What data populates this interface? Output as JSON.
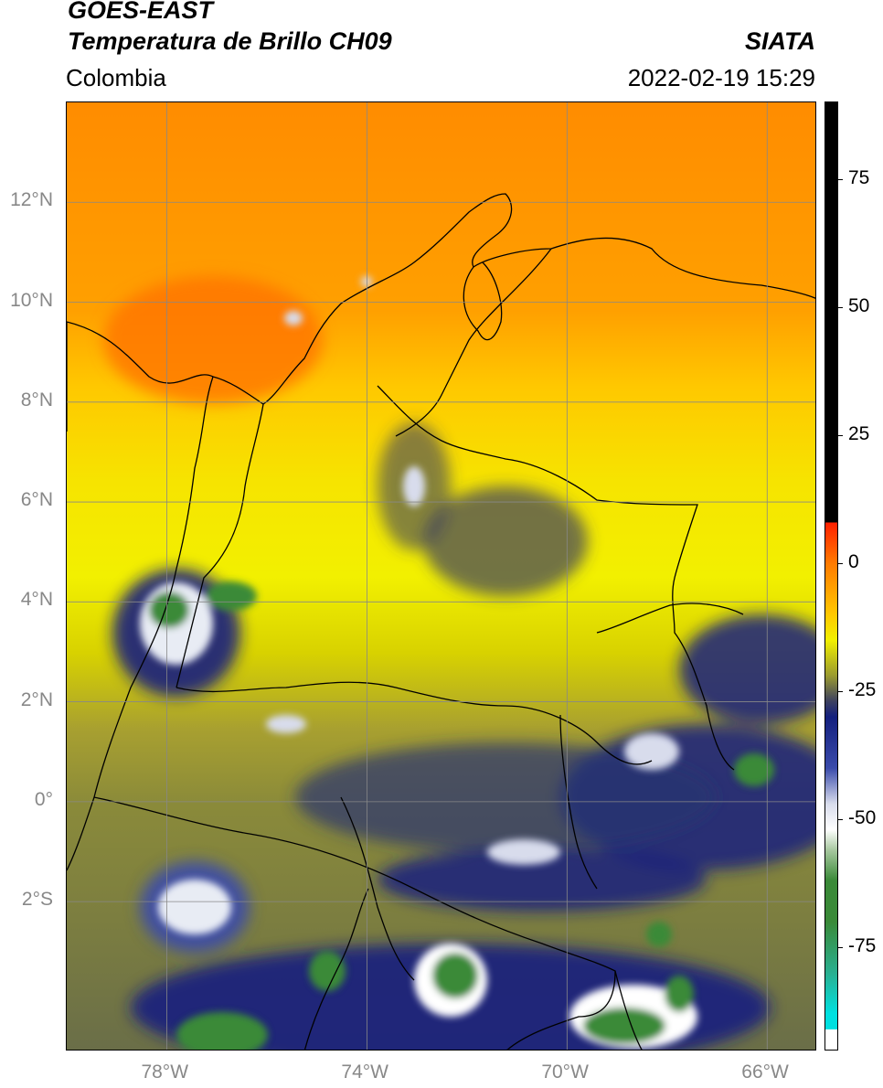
{
  "header": {
    "satellite": "GOES-EAST",
    "product": "Temperatura de Brillo CH09",
    "region": "Colombia",
    "agency": "SIATA",
    "datetime": "2022-02-19 15:29"
  },
  "map": {
    "projection": "PlateCarree",
    "lon_range": [
      -80,
      -65
    ],
    "lat_range": [
      -5,
      14
    ],
    "lat_ticks": [
      {
        "value": 12,
        "label": "12°N"
      },
      {
        "value": 10,
        "label": "10°N"
      },
      {
        "value": 8,
        "label": "8°N"
      },
      {
        "value": 6,
        "label": "6°N"
      },
      {
        "value": 4,
        "label": "4°N"
      },
      {
        "value": 2,
        "label": "2°N"
      },
      {
        "value": 0,
        "label": "0°"
      },
      {
        "value": -2,
        "label": "2°S"
      }
    ],
    "lon_ticks": [
      {
        "value": -78,
        "label": "78°W"
      },
      {
        "value": -74,
        "label": "74°W"
      },
      {
        "value": -70,
        "label": "70°W"
      },
      {
        "value": -66,
        "label": "66°W"
      }
    ],
    "gridlines": true
  },
  "colorbar": {
    "range": [
      -95,
      90
    ],
    "ticks": [
      {
        "value": 75,
        "label": "75"
      },
      {
        "value": 50,
        "label": "50"
      },
      {
        "value": 25,
        "label": "25"
      },
      {
        "value": 0,
        "label": "0"
      },
      {
        "value": -25,
        "label": "-25"
      },
      {
        "value": -50,
        "label": "-50"
      },
      {
        "value": -75,
        "label": "-75"
      }
    ],
    "stops": [
      {
        "v": 90,
        "c": "#000000"
      },
      {
        "v": 8,
        "c": "#000000"
      },
      {
        "v": 7.9,
        "c": "#ff2000"
      },
      {
        "v": 0,
        "c": "#ff7a00"
      },
      {
        "v": -10,
        "c": "#ffc800"
      },
      {
        "v": -15,
        "c": "#f2f000"
      },
      {
        "v": -22,
        "c": "#9a9a30"
      },
      {
        "v": -27,
        "c": "#3c4060"
      },
      {
        "v": -30,
        "c": "#14207e"
      },
      {
        "v": -40,
        "c": "#3a4bab"
      },
      {
        "v": -47,
        "c": "#d8dcec"
      },
      {
        "v": -52,
        "c": "#ffffff"
      },
      {
        "v": -56,
        "c": "#a8c8a0"
      },
      {
        "v": -62,
        "c": "#3a8a38"
      },
      {
        "v": -70,
        "c": "#3a8a38"
      },
      {
        "v": -80,
        "c": "#2aaf90"
      },
      {
        "v": -88,
        "c": "#00e0e0"
      },
      {
        "v": -91,
        "c": "#00e0e0"
      },
      {
        "v": -91.1,
        "c": "#ffffff"
      },
      {
        "v": -95,
        "c": "#ffffff"
      }
    ]
  },
  "colors": {
    "north_band": "#ff8c00",
    "mid_band": "#f0e000",
    "south_band": "#8a8a3a",
    "cold_cloud": "#1a2a88",
    "very_cold": "#3a8a38"
  }
}
